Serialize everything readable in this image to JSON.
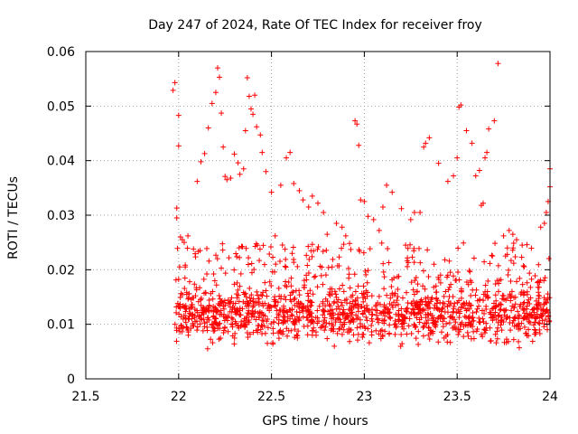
{
  "chart_data": {
    "type": "scatter",
    "title": "Day 247 of 2024, Rate Of TEC Index for receiver froy",
    "xlabel": "GPS time / hours",
    "ylabel": "ROTI / TECUs",
    "xlim": [
      21.5,
      24
    ],
    "ylim": [
      0,
      0.06
    ],
    "xticks": [
      21.5,
      22,
      22.5,
      23,
      23.5,
      24
    ],
    "xtick_labels": [
      "21.5",
      "22",
      "22.5",
      "23",
      "23.5",
      "24"
    ],
    "yticks": [
      0,
      0.01,
      0.02,
      0.03,
      0.04,
      0.05,
      0.06
    ],
    "ytick_labels": [
      "0",
      "0.01",
      "0.02",
      "0.03",
      "0.04",
      "0.05",
      "0.06"
    ],
    "grid": true,
    "marker": "+",
    "color": "#ff0000",
    "series": [
      {
        "name": "ROTI",
        "x": [
          21.97,
          21.98,
          21.99,
          21.99,
          22.0,
          22.0,
          22.01,
          22.02,
          22.03,
          22.05,
          22.08,
          22.1,
          22.12,
          22.14,
          22.16,
          22.18,
          22.2,
          22.21,
          22.22,
          22.23,
          22.24,
          22.25,
          22.26,
          22.28,
          22.3,
          22.32,
          22.33,
          22.35,
          22.36,
          22.37,
          22.38,
          22.39,
          22.4,
          22.41,
          22.42,
          22.44,
          22.45,
          22.47,
          22.5,
          22.52,
          22.55,
          22.58,
          22.6,
          22.62,
          22.65,
          22.67,
          22.7,
          22.72,
          22.75,
          22.78,
          22.8,
          22.85,
          22.88,
          22.9,
          22.95,
          22.96,
          22.97,
          22.98,
          23.0,
          23.02,
          23.05,
          23.08,
          23.1,
          23.12,
          23.15,
          23.2,
          23.25,
          23.27,
          23.3,
          23.32,
          23.33,
          23.35,
          23.4,
          23.45,
          23.48,
          23.5,
          23.51,
          23.52,
          23.55,
          23.58,
          23.6,
          23.62,
          23.63,
          23.64,
          23.65,
          23.66,
          23.67,
          23.7,
          23.72,
          23.75,
          23.78,
          23.8,
          23.82,
          23.85,
          23.95,
          23.97,
          23.98,
          23.99,
          24.0,
          24.0
        ],
        "y": [
          0.0529,
          0.0543,
          0.0313,
          0.0295,
          0.0483,
          0.0427,
          0.026,
          0.0255,
          0.025,
          0.0262,
          0.0238,
          0.0362,
          0.0398,
          0.0413,
          0.046,
          0.0505,
          0.0525,
          0.057,
          0.0553,
          0.0487,
          0.0425,
          0.0371,
          0.0365,
          0.0368,
          0.0412,
          0.0396,
          0.0375,
          0.0385,
          0.0455,
          0.0552,
          0.0518,
          0.0495,
          0.0485,
          0.052,
          0.0462,
          0.0447,
          0.0415,
          0.038,
          0.0342,
          0.0262,
          0.0355,
          0.0405,
          0.0415,
          0.0358,
          0.0345,
          0.0328,
          0.0315,
          0.0335,
          0.0322,
          0.0305,
          0.0265,
          0.0285,
          0.0278,
          0.0262,
          0.0473,
          0.0467,
          0.0428,
          0.0328,
          0.0325,
          0.0298,
          0.0292,
          0.0272,
          0.0315,
          0.0355,
          0.0342,
          0.0312,
          0.0292,
          0.0305,
          0.0305,
          0.0425,
          0.0432,
          0.0442,
          0.0395,
          0.0362,
          0.0372,
          0.0405,
          0.0498,
          0.0502,
          0.0455,
          0.0432,
          0.0372,
          0.0382,
          0.0318,
          0.0322,
          0.0405,
          0.0415,
          0.0458,
          0.0473,
          0.0578,
          0.0262,
          0.0272,
          0.0265,
          0.0255,
          0.0245,
          0.0278,
          0.0285,
          0.0305,
          0.0325,
          0.0385,
          0.0352
        ],
        "dense_band": {
          "x_range": [
            21.98,
            24.0
          ],
          "y_range": [
            0.005,
            0.024
          ],
          "median": 0.012,
          "note": "dense cloud of ROTI samples across the full time window"
        }
      }
    ]
  }
}
